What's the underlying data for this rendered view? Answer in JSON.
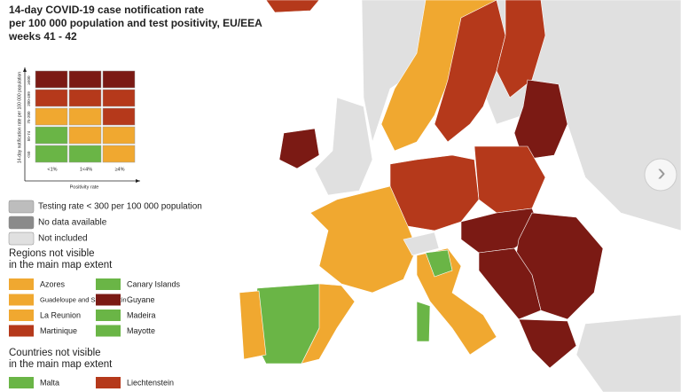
{
  "header": {
    "title_lines": [
      "14-day COVID-19 case notification rate",
      "per 100 000 population and test positivity, EU/EEA",
      "weeks 41 - 42"
    ]
  },
  "matrix": {
    "y_label": "14-day notification rate per 100 000 population",
    "x_label": "Positivity rate",
    "rows": [
      "≥500",
      "200-499",
      "75-200",
      "50-74",
      "<50"
    ],
    "columns": [
      "<1%",
      "1<4%",
      "≥4%"
    ],
    "colors": [
      [
        "#7b1a14",
        "#7b1a14",
        "#7b1a14"
      ],
      [
        "#b5391b",
        "#b5391b",
        "#b5391b"
      ],
      [
        "#f0a830",
        "#f0a830",
        "#b5391b"
      ],
      [
        "#6ab546",
        "#f0a830",
        "#f0a830"
      ],
      [
        "#6ab546",
        "#6ab546",
        "#f0a830"
      ]
    ]
  },
  "status_legend": [
    {
      "label": "Testing rate < 300 per 100 000 population",
      "color": "#bdbdbd"
    },
    {
      "label": "No data available",
      "color": "#8a8a8a"
    },
    {
      "label": "Not included",
      "color": "#e0e0e0"
    }
  ],
  "regions": {
    "heading_lines": [
      "Regions not visible",
      "in the main map extent"
    ],
    "items": [
      {
        "label": "Azores",
        "color": "#f0a830"
      },
      {
        "label": "Canary Islands",
        "color": "#6ab546"
      },
      {
        "label": "Guadeloupe and Saint Martin",
        "color": "#f0a830"
      },
      {
        "label": "Guyane",
        "color": "#7b1a14"
      },
      {
        "label": "La Reunion",
        "color": "#f0a830"
      },
      {
        "label": "Madeira",
        "color": "#6ab546"
      },
      {
        "label": "Martinique",
        "color": "#b5391b"
      },
      {
        "label": "Mayotte",
        "color": "#6ab546"
      }
    ]
  },
  "countries": {
    "heading_lines": [
      "Countries not visible",
      "in the main map extent"
    ],
    "items": [
      {
        "label": "Malta",
        "color": "#6ab546"
      },
      {
        "label": "Liechtenstein",
        "color": "#b5391b"
      }
    ]
  },
  "navigation": {
    "next": "›"
  }
}
